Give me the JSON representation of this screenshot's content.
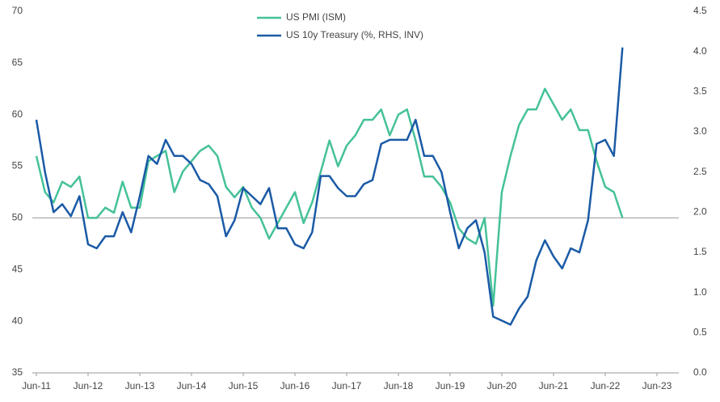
{
  "chart_data": {
    "type": "line",
    "categories": [
      "Jun-11",
      null,
      null,
      null,
      null,
      null,
      "Jun-12",
      null,
      null,
      null,
      null,
      null,
      "Jun-13",
      null,
      null,
      null,
      null,
      null,
      "Jun-14",
      null,
      null,
      null,
      null,
      null,
      "Jun-15",
      null,
      null,
      null,
      null,
      null,
      "Jun-16",
      null,
      null,
      null,
      null,
      null,
      "Jun-17",
      null,
      null,
      null,
      null,
      null,
      "Jun-18",
      null,
      null,
      null,
      null,
      null,
      "Jun-19",
      null,
      null,
      null,
      null,
      null,
      "Jun-20",
      null,
      null,
      null,
      null,
      null,
      "Jun-21",
      null,
      null,
      null,
      null,
      null,
      "Jun-22",
      null,
      null,
      null,
      null,
      null,
      "Jun-23"
    ],
    "series": [
      {
        "name": "US PMI (ISM)",
        "color": "#45c199",
        "values": [
          56,
          52.5,
          51.5,
          53.5,
          53,
          54,
          50,
          50,
          51,
          50.5,
          53.5,
          51,
          51,
          55.5,
          56,
          56.5,
          52.5,
          54.5,
          55.5,
          56.5,
          57,
          56,
          53,
          52,
          53,
          51,
          50,
          48,
          49.5,
          51,
          52.5,
          49.5,
          51.5,
          54.5,
          57.5,
          55,
          57,
          58,
          59.5,
          59.5,
          60.5,
          58,
          60,
          60.5,
          57.5,
          54,
          54,
          53,
          51.5,
          49,
          48,
          47.5,
          50,
          41.5,
          52.5,
          56,
          59,
          60.5,
          60.5,
          62.5,
          61,
          59.5,
          60.5,
          58.5,
          58.5,
          55.5,
          53,
          52.5,
          50,
          null,
          null,
          null,
          null
        ]
      },
      {
        "name": "US 10y Treasury (%, RHS, INV)",
        "color": "#1a5aa6",
        "axis": "y2",
        "values": [
          3.15,
          2.5,
          2.0,
          2.1,
          1.95,
          2.2,
          1.6,
          1.55,
          1.7,
          1.7,
          2.0,
          1.75,
          2.2,
          2.7,
          2.6,
          2.9,
          2.7,
          2.7,
          2.6,
          2.4,
          2.35,
          2.2,
          1.7,
          1.9,
          2.3,
          2.2,
          2.1,
          2.3,
          1.8,
          1.8,
          1.6,
          1.55,
          1.75,
          2.45,
          2.45,
          2.3,
          2.2,
          2.2,
          2.35,
          2.4,
          2.85,
          2.9,
          2.9,
          2.9,
          3.15,
          2.7,
          2.7,
          2.5,
          2.0,
          1.55,
          1.8,
          1.9,
          1.5,
          0.7,
          0.65,
          0.6,
          0.8,
          0.95,
          1.4,
          1.65,
          1.45,
          1.3,
          1.55,
          1.5,
          1.9,
          2.85,
          2.9,
          2.7,
          4.05,
          null,
          null,
          null,
          null
        ]
      }
    ],
    "ylim": [
      35,
      70
    ],
    "yticks": [
      35,
      40,
      45,
      50,
      55,
      60,
      65,
      70
    ],
    "y2lim": [
      0,
      4.5
    ],
    "y2ticks": [
      {
        "value": 0,
        "label": "0.0"
      },
      {
        "value": 0.5,
        "label": "0.5"
      },
      {
        "value": 1,
        "label": "1.0"
      },
      {
        "value": 1.5,
        "label": "1.5"
      },
      {
        "value": 2,
        "label": "2.0"
      },
      {
        "value": 2.5,
        "label": "2.5"
      },
      {
        "value": 3,
        "label": "3.0"
      },
      {
        "value": 3.5,
        "label": "3.5"
      },
      {
        "value": 4,
        "label": "4.0"
      },
      {
        "value": 4.5,
        "label": "4.5"
      }
    ],
    "reference_line": 50,
    "legend": "top"
  }
}
